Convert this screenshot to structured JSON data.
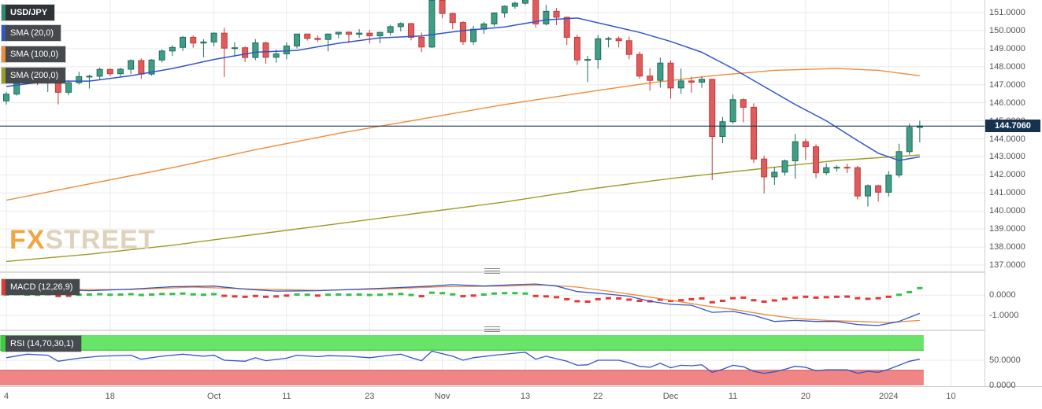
{
  "price_label": "144.7060",
  "watermark": {
    "fx": "FX",
    "street": "STREET"
  },
  "legend": {
    "symbol": "USD/JPY",
    "sma20": "SMA (20,0)",
    "sma100": "SMA (100,0)",
    "sma200": "SMA (200,0)",
    "macd": "MACD (12,26,9)",
    "rsi": "RSI (14,70,30,1)"
  },
  "colors": {
    "bull": "#419d86",
    "bull_border": "#1f6e5c",
    "bear": "#e05c5c",
    "bear_border": "#c03a3a",
    "sma20": "#3056c8",
    "sma100": "#ef8b3a",
    "sma200": "#9c9c28",
    "macd_line": "#3056c8",
    "macd_signal": "#ef8b3a",
    "hist_pos": "#35c04a",
    "hist_neg": "#e53935",
    "rsi_line": "#3056c8",
    "rsi_upper_band": "#68e568",
    "rsi_upper_edge": "#2db82d",
    "rsi_lower_band": "#f08585",
    "rsi_lower_edge": "#d05555",
    "price_line": "#16324f",
    "price_label_bg": "#16324f",
    "grid": "#eaeaea",
    "axis_text": "#555555",
    "strip_symbol": "#2e8b72",
    "strip_macd": "#e53935",
    "strip_rsi": "#43c843",
    "logo_fx": "#f0a23c",
    "logo_street": "#ded0b8"
  },
  "chart_data": {
    "type": "candlestick",
    "symbol": "USD/JPY",
    "current_price": 144.706,
    "price_axis": {
      "min": 137,
      "max": 151,
      "step": 1,
      "decimals": 4
    },
    "time_axis": {
      "labels": [
        "4",
        "18",
        "Oct",
        "11",
        "23",
        "Nov",
        "13",
        "22",
        "Dec",
        "11",
        "20",
        "2024",
        "10"
      ],
      "indices": [
        0,
        10,
        20,
        27,
        35,
        42,
        50,
        57,
        64,
        70,
        77,
        85,
        91
      ]
    },
    "candles": [
      [
        146.1,
        146.6,
        145.9,
        146.48
      ],
      [
        146.48,
        147.82,
        146.4,
        147.71
      ],
      [
        147.71,
        147.87,
        147.38,
        147.66
      ],
      [
        147.66,
        147.87,
        146.98,
        147.3
      ],
      [
        147.3,
        147.87,
        146.59,
        147.8
      ],
      [
        147.8,
        147.9,
        145.91,
        146.58
      ],
      [
        146.58,
        147.25,
        146.41,
        147.11
      ],
      [
        147.11,
        147.72,
        147.02,
        147.45
      ],
      [
        147.45,
        147.56,
        146.79,
        147.47
      ],
      [
        147.47,
        147.95,
        147.27,
        147.85
      ],
      [
        147.85,
        147.89,
        147.46,
        147.61
      ],
      [
        147.61,
        147.94,
        147.44,
        147.86
      ],
      [
        147.86,
        148.4,
        147.6,
        148.34
      ],
      [
        148.34,
        148.46,
        147.32,
        147.59
      ],
      [
        147.59,
        148.42,
        147.5,
        148.37
      ],
      [
        148.37,
        148.97,
        148.24,
        148.87
      ],
      [
        148.87,
        149.19,
        148.6,
        149.07
      ],
      [
        149.07,
        149.71,
        148.87,
        149.63
      ],
      [
        149.63,
        149.74,
        149.05,
        149.31
      ],
      [
        149.31,
        149.53,
        148.52,
        149.37
      ],
      [
        149.37,
        149.9,
        149.13,
        149.86
      ],
      [
        149.86,
        150.16,
        147.43,
        149.03
      ],
      [
        149.03,
        149.35,
        148.55,
        149.05
      ],
      [
        149.05,
        149.12,
        148.26,
        148.51
      ],
      [
        148.51,
        149.53,
        148.36,
        149.32
      ],
      [
        149.32,
        149.39,
        148.17,
        148.52
      ],
      [
        148.52,
        148.95,
        148.22,
        148.71
      ],
      [
        148.71,
        149.35,
        148.41,
        149.15
      ],
      [
        149.15,
        149.83,
        149.01,
        149.81
      ],
      [
        149.81,
        149.83,
        149.45,
        149.57
      ],
      [
        149.57,
        149.74,
        149.36,
        149.51
      ],
      [
        149.51,
        149.84,
        148.85,
        149.81
      ],
      [
        149.81,
        149.93,
        149.58,
        149.91
      ],
      [
        149.91,
        149.96,
        149.31,
        149.8
      ],
      [
        149.8,
        150.08,
        149.6,
        149.86
      ],
      [
        149.86,
        150.04,
        149.29,
        149.71
      ],
      [
        149.71,
        149.94,
        149.3,
        149.9
      ],
      [
        149.9,
        150.32,
        149.73,
        150.22
      ],
      [
        150.22,
        150.46,
        149.96,
        150.39
      ],
      [
        150.39,
        150.42,
        149.46,
        149.63
      ],
      [
        149.63,
        149.89,
        148.81,
        149.09
      ],
      [
        149.09,
        151.74,
        149.03,
        151.68
      ],
      [
        151.68,
        151.72,
        150.68,
        150.95
      ],
      [
        150.95,
        151.0,
        150.09,
        150.45
      ],
      [
        150.45,
        150.52,
        149.21,
        149.39
      ],
      [
        149.39,
        150.27,
        149.22,
        150.08
      ],
      [
        150.08,
        150.48,
        149.82,
        150.37
      ],
      [
        150.37,
        151.01,
        150.23,
        150.98
      ],
      [
        150.98,
        151.4,
        150.72,
        151.35
      ],
      [
        151.35,
        151.6,
        151.21,
        151.52
      ],
      [
        151.52,
        151.91,
        151.42,
        151.71
      ],
      [
        151.71,
        151.8,
        150.17,
        150.37
      ],
      [
        150.37,
        151.43,
        150.29,
        151.07
      ],
      [
        151.07,
        151.25,
        150.3,
        150.74
      ],
      [
        150.74,
        150.77,
        149.2,
        149.63
      ],
      [
        149.63,
        149.77,
        148.1,
        148.37
      ],
      [
        148.37,
        148.6,
        147.15,
        148.4
      ],
      [
        148.4,
        149.75,
        147.89,
        149.55
      ],
      [
        149.55,
        149.66,
        149.07,
        149.56
      ],
      [
        149.56,
        149.68,
        149.07,
        149.44
      ],
      [
        149.44,
        149.67,
        148.41,
        148.68
      ],
      [
        148.68,
        148.83,
        147.33,
        147.48
      ],
      [
        147.48,
        147.91,
        146.67,
        147.24
      ],
      [
        147.24,
        148.51,
        146.83,
        148.2
      ],
      [
        148.2,
        148.34,
        146.23,
        146.82
      ],
      [
        146.82,
        147.9,
        146.5,
        147.21
      ],
      [
        147.21,
        147.44,
        146.56,
        147.14
      ],
      [
        147.14,
        147.48,
        146.83,
        147.3
      ],
      [
        147.3,
        147.33,
        141.71,
        144.13
      ],
      [
        144.13,
        145.21,
        143.76,
        144.95
      ],
      [
        144.95,
        146.46,
        144.83,
        146.17
      ],
      [
        146.17,
        146.24,
        144.92,
        145.75
      ],
      [
        145.75,
        145.97,
        142.65,
        142.88
      ],
      [
        142.88,
        143.07,
        140.97,
        141.89
      ],
      [
        141.89,
        142.45,
        141.44,
        142.15
      ],
      [
        142.15,
        142.85,
        141.96,
        142.78
      ],
      [
        142.78,
        144.27,
        141.79,
        143.84
      ],
      [
        143.84,
        144.0,
        142.83,
        143.56
      ],
      [
        143.56,
        143.69,
        141.81,
        142.12
      ],
      [
        142.12,
        142.65,
        141.99,
        142.4
      ],
      [
        142.4,
        142.53,
        142.18,
        142.42
      ],
      [
        142.42,
        142.62,
        142.1,
        142.4
      ],
      [
        142.4,
        142.5,
        140.64,
        140.83
      ],
      [
        140.83,
        141.47,
        140.25,
        141.4
      ],
      [
        141.4,
        141.46,
        140.51,
        141.04
      ],
      [
        141.04,
        142.21,
        140.8,
        141.99
      ],
      [
        141.99,
        143.73,
        141.85,
        143.29
      ],
      [
        143.29,
        144.85,
        143.12,
        144.63
      ],
      [
        144.63,
        145.0,
        143.8,
        144.71
      ]
    ],
    "overlays": {
      "sma20": [
        [
          0,
          146.9
        ],
        [
          4,
          147.2
        ],
        [
          8,
          147.2
        ],
        [
          12,
          147.5
        ],
        [
          16,
          147.9
        ],
        [
          20,
          148.4
        ],
        [
          24,
          148.8
        ],
        [
          28,
          148.9
        ],
        [
          32,
          149.3
        ],
        [
          36,
          149.6
        ],
        [
          40,
          149.7
        ],
        [
          44,
          150.0
        ],
        [
          48,
          150.2
        ],
        [
          52,
          150.6
        ],
        [
          55,
          150.7
        ],
        [
          58,
          150.3
        ],
        [
          61,
          149.9
        ],
        [
          64,
          149.4
        ],
        [
          67,
          148.8
        ],
        [
          70,
          147.9
        ],
        [
          73,
          146.9
        ],
        [
          76,
          145.9
        ],
        [
          79,
          145.0
        ],
        [
          82,
          143.9
        ],
        [
          84,
          143.2
        ],
        [
          86,
          142.8
        ],
        [
          88,
          143.0
        ]
      ],
      "sma100": [
        [
          0,
          140.6
        ],
        [
          8,
          141.5
        ],
        [
          16,
          142.4
        ],
        [
          24,
          143.4
        ],
        [
          32,
          144.3
        ],
        [
          40,
          145.1
        ],
        [
          48,
          145.9
        ],
        [
          56,
          146.6
        ],
        [
          62,
          147.1
        ],
        [
          68,
          147.5
        ],
        [
          74,
          147.8
        ],
        [
          80,
          147.9
        ],
        [
          84,
          147.8
        ],
        [
          88,
          147.5
        ]
      ],
      "sma200": [
        [
          0,
          137.2
        ],
        [
          8,
          137.6
        ],
        [
          16,
          138.1
        ],
        [
          24,
          138.7
        ],
        [
          32,
          139.3
        ],
        [
          40,
          139.9
        ],
        [
          48,
          140.5
        ],
        [
          56,
          141.2
        ],
        [
          64,
          141.8
        ],
        [
          72,
          142.3
        ],
        [
          80,
          142.8
        ],
        [
          88,
          143.1
        ]
      ]
    },
    "macd": {
      "range": {
        "top": 1.1,
        "bottom": -1.7
      },
      "axis_ticks": [
        0,
        -1
      ],
      "line": [
        [
          0,
          0.35
        ],
        [
          4,
          0.3
        ],
        [
          8,
          0.22
        ],
        [
          12,
          0.3
        ],
        [
          16,
          0.42
        ],
        [
          20,
          0.45
        ],
        [
          23,
          0.3
        ],
        [
          26,
          0.2
        ],
        [
          30,
          0.22
        ],
        [
          34,
          0.3
        ],
        [
          38,
          0.38
        ],
        [
          41,
          0.45
        ],
        [
          43,
          0.52
        ],
        [
          46,
          0.45
        ],
        [
          49,
          0.52
        ],
        [
          51,
          0.55
        ],
        [
          53,
          0.45
        ],
        [
          55,
          0.18
        ],
        [
          58,
          0.05
        ],
        [
          60,
          -0.05
        ],
        [
          62,
          -0.3
        ],
        [
          64,
          -0.45
        ],
        [
          66,
          -0.5
        ],
        [
          68,
          -0.85
        ],
        [
          70,
          -0.8
        ],
        [
          72,
          -1.0
        ],
        [
          74,
          -1.3
        ],
        [
          76,
          -1.25
        ],
        [
          78,
          -1.3
        ],
        [
          80,
          -1.3
        ],
        [
          82,
          -1.45
        ],
        [
          84,
          -1.5
        ],
        [
          86,
          -1.3
        ],
        [
          88,
          -0.9
        ]
      ],
      "signal": [
        [
          0,
          0.32
        ],
        [
          6,
          0.28
        ],
        [
          12,
          0.28
        ],
        [
          18,
          0.4
        ],
        [
          24,
          0.3
        ],
        [
          30,
          0.24
        ],
        [
          36,
          0.3
        ],
        [
          42,
          0.42
        ],
        [
          48,
          0.45
        ],
        [
          52,
          0.5
        ],
        [
          55,
          0.4
        ],
        [
          58,
          0.2
        ],
        [
          61,
          -0.02
        ],
        [
          64,
          -0.25
        ],
        [
          67,
          -0.5
        ],
        [
          70,
          -0.7
        ],
        [
          73,
          -0.95
        ],
        [
          76,
          -1.15
        ],
        [
          79,
          -1.25
        ],
        [
          82,
          -1.3
        ],
        [
          85,
          -1.35
        ],
        [
          88,
          -1.25
        ]
      ],
      "histogram": [
        0.04,
        0.06,
        0.03,
        0.02,
        0.05,
        -0.04,
        -0.03,
        0.02,
        0.03,
        0.05,
        0.02,
        0.03,
        0.05,
        0.01,
        0.03,
        0.06,
        0.06,
        0.08,
        0.04,
        0.02,
        0.05,
        -0.03,
        -0.06,
        -0.08,
        -0.04,
        -0.08,
        -0.06,
        -0.02,
        0.03,
        0.02,
        -0.02,
        0.02,
        0.03,
        0.02,
        0.03,
        0.01,
        0.02,
        0.05,
        0.06,
        0.01,
        -0.05,
        0.12,
        0.1,
        0.04,
        -0.05,
        -0.02,
        0.03,
        0.08,
        0.1,
        0.1,
        0.08,
        -0.04,
        -0.06,
        -0.1,
        -0.2,
        -0.3,
        -0.32,
        -0.2,
        -0.15,
        -0.16,
        -0.22,
        -0.28,
        -0.3,
        -0.22,
        -0.28,
        -0.25,
        -0.2,
        -0.16,
        -0.35,
        -0.28,
        -0.15,
        -0.12,
        -0.25,
        -0.32,
        -0.26,
        -0.18,
        -0.12,
        -0.08,
        -0.12,
        -0.1,
        -0.08,
        -0.07,
        -0.15,
        -0.18,
        -0.15,
        -0.08,
        0.02,
        0.15,
        0.35
      ]
    },
    "rsi": {
      "range": [
        0,
        100
      ],
      "axis_ticks": [
        50,
        0
      ],
      "overbought": 70,
      "oversold": 30,
      "line": [
        [
          0,
          55
        ],
        [
          2,
          62
        ],
        [
          4,
          60
        ],
        [
          5,
          48
        ],
        [
          7,
          54
        ],
        [
          9,
          58
        ],
        [
          12,
          60
        ],
        [
          13,
          52
        ],
        [
          15,
          58
        ],
        [
          17,
          62
        ],
        [
          19,
          58
        ],
        [
          20,
          60
        ],
        [
          21,
          50
        ],
        [
          23,
          48
        ],
        [
          24,
          55
        ],
        [
          25,
          49
        ],
        [
          27,
          54
        ],
        [
          28,
          60
        ],
        [
          30,
          57
        ],
        [
          31,
          59
        ],
        [
          33,
          58
        ],
        [
          35,
          55
        ],
        [
          37,
          60
        ],
        [
          38,
          62
        ],
        [
          39,
          55
        ],
        [
          40,
          49
        ],
        [
          41,
          68
        ],
        [
          43,
          58
        ],
        [
          44,
          50
        ],
        [
          45,
          55
        ],
        [
          47,
          60
        ],
        [
          49,
          64
        ],
        [
          50,
          66
        ],
        [
          51,
          52
        ],
        [
          52,
          58
        ],
        [
          54,
          48
        ],
        [
          55,
          40
        ],
        [
          56,
          41
        ],
        [
          57,
          50
        ],
        [
          59,
          50
        ],
        [
          60,
          45
        ],
        [
          61,
          38
        ],
        [
          62,
          36
        ],
        [
          63,
          44
        ],
        [
          64,
          35
        ],
        [
          65,
          40
        ],
        [
          66,
          39
        ],
        [
          67,
          41
        ],
        [
          68,
          26
        ],
        [
          69,
          32
        ],
        [
          70,
          40
        ],
        [
          71,
          37
        ],
        [
          72,
          28
        ],
        [
          73,
          24
        ],
        [
          74,
          27
        ],
        [
          75,
          32
        ],
        [
          76,
          38
        ],
        [
          77,
          36
        ],
        [
          78,
          29
        ],
        [
          79,
          31
        ],
        [
          80,
          31
        ],
        [
          81,
          31
        ],
        [
          82,
          24
        ],
        [
          83,
          28
        ],
        [
          84,
          26
        ],
        [
          85,
          32
        ],
        [
          86,
          40
        ],
        [
          87,
          48
        ],
        [
          88,
          52
        ]
      ]
    }
  }
}
